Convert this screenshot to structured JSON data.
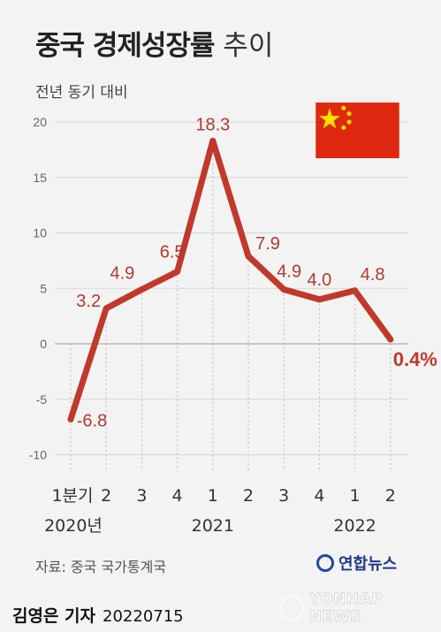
{
  "title_bold": "중국 경제성장률",
  "title_rest": "추이",
  "subtitle": "전년 동기 대비",
  "source": "자료: 중국 국가통계국",
  "logo_text": "연합뉴스",
  "byline_name": "김영은 기자",
  "byline_date": "20220715",
  "watermark": "YONHAP NEWS",
  "flag_icon": "china-flag-icon",
  "colors": {
    "line": "#c0392b",
    "label": "#b03a2e",
    "highlight": "#c0392b",
    "flag": "#de2910",
    "star": "#ffde00"
  },
  "chart_data": {
    "type": "line",
    "categories": [
      "1분기",
      "2",
      "3",
      "4",
      "1",
      "2",
      "3",
      "4",
      "1",
      "2"
    ],
    "years": [
      "2020년",
      "2021",
      "2022"
    ],
    "year_under": [
      0,
      4,
      8
    ],
    "values": [
      -6.8,
      3.2,
      4.9,
      6.5,
      18.3,
      7.9,
      4.9,
      4.0,
      4.8,
      0.4
    ],
    "data_labels": [
      "-6.8",
      "3.2",
      "4.9",
      "6.5",
      "18.3",
      "7.9",
      "4.9",
      "4.0",
      "4.8",
      "0.4%"
    ],
    "ylim": [
      -10,
      20
    ],
    "yticks": [
      "-10",
      "-5",
      "0",
      "5",
      "10",
      "15",
      "20"
    ],
    "ytick_values": [
      -10,
      -5,
      0,
      5,
      10,
      15,
      20
    ],
    "xlabel": "",
    "ylabel": ""
  }
}
